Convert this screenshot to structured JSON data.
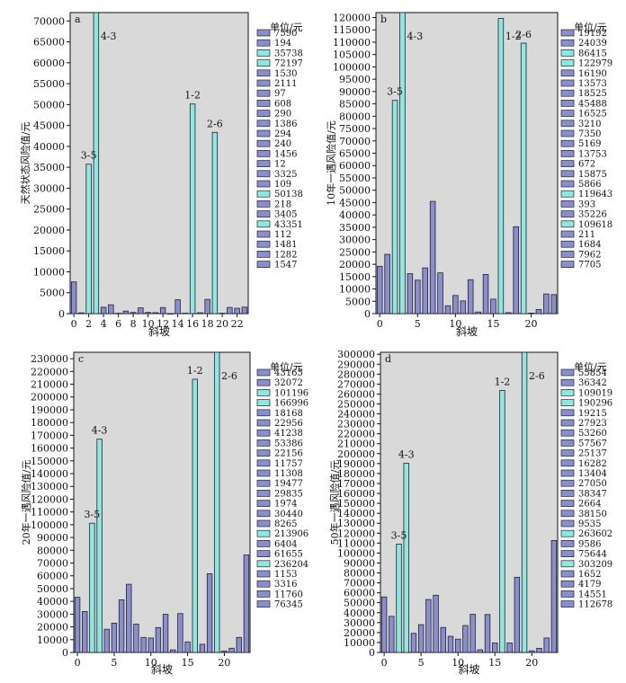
{
  "chart_data": [
    {
      "type": "bar",
      "panel": "a",
      "xlabel": "斜坡",
      "ylabel": "天然状态风险值/元",
      "ylim": [
        0,
        72000
      ],
      "yticks": [
        0,
        5000,
        10000,
        15000,
        20000,
        25000,
        30000,
        35000,
        40000,
        45000,
        50000,
        55000,
        60000,
        65000,
        70000
      ],
      "xticks": [
        0,
        2,
        4,
        6,
        8,
        10,
        12,
        14,
        16,
        18,
        20,
        22
      ],
      "legend_title": "单位/元",
      "values": [
        7590,
        194,
        35738,
        72197,
        1530,
        2111,
        97,
        608,
        290,
        1386,
        294,
        240,
        1456,
        12,
        3325,
        109,
        50138,
        218,
        3405,
        43351,
        112,
        1481,
        1282,
        1547
      ],
      "highlight": [
        2,
        3,
        16,
        19
      ],
      "annotations": [
        {
          "text": "3-5",
          "index": 2,
          "value": 35738
        },
        {
          "text": "4-3",
          "index": 3,
          "value": 72197
        },
        {
          "text": "1-2",
          "index": 16,
          "value": 50138
        },
        {
          "text": "2-6",
          "index": 19,
          "value": 43351
        }
      ],
      "grid": false,
      "legend_position": "right"
    },
    {
      "type": "bar",
      "panel": "b",
      "xlabel": "斜坡",
      "ylabel": "10年一遇风险值/元",
      "ylim": [
        0,
        122000
      ],
      "yticks": [
        0,
        5000,
        10000,
        15000,
        20000,
        25000,
        30000,
        35000,
        40000,
        45000,
        50000,
        55000,
        60000,
        65000,
        70000,
        75000,
        80000,
        85000,
        90000,
        95000,
        100000,
        105000,
        110000,
        115000,
        120000
      ],
      "xticks": [
        0,
        5,
        10,
        15,
        20
      ],
      "legend_title": "单位/元",
      "values": [
        19192,
        24039,
        86415,
        122979,
        16190,
        13573,
        18525,
        45488,
        16525,
        3210,
        7350,
        5169,
        13753,
        672,
        15875,
        5866,
        119643,
        393,
        35226,
        109618,
        211,
        1684,
        7962,
        7705
      ],
      "highlight": [
        2,
        3,
        16,
        19
      ],
      "annotations": [
        {
          "text": "3-5",
          "index": 2,
          "value": 86415
        },
        {
          "text": "4-3",
          "index": 3,
          "value": 122979
        },
        {
          "text": "1-2",
          "index": 16,
          "value": 119643
        },
        {
          "text": "2-6",
          "index": 19,
          "value": 109618
        }
      ],
      "grid": false,
      "legend_position": "right"
    },
    {
      "type": "bar",
      "panel": "c",
      "xlabel": "斜坡",
      "ylabel": "20年一遇风险值/元",
      "ylim": [
        0,
        235000
      ],
      "yticks": [
        0,
        10000,
        20000,
        30000,
        40000,
        50000,
        60000,
        70000,
        80000,
        90000,
        100000,
        110000,
        120000,
        130000,
        140000,
        150000,
        160000,
        170000,
        180000,
        190000,
        200000,
        210000,
        220000,
        230000
      ],
      "xticks": [
        0,
        5,
        10,
        15,
        20
      ],
      "legend_title": "单位/元",
      "values": [
        43165,
        32072,
        101196,
        166996,
        18168,
        22956,
        41238,
        53386,
        22156,
        11757,
        11308,
        19477,
        29835,
        1974,
        30440,
        8265,
        213906,
        6404,
        61655,
        236204,
        1153,
        3316,
        11760,
        76345
      ],
      "highlight": [
        2,
        3,
        16,
        19
      ],
      "annotations": [
        {
          "text": "3-5",
          "index": 2,
          "value": 101196
        },
        {
          "text": "4-3",
          "index": 3,
          "value": 166996
        },
        {
          "text": "1-2",
          "index": 16,
          "value": 213906
        },
        {
          "text": "2-6",
          "index": 19,
          "value": 236204
        }
      ],
      "grid": false,
      "legend_position": "right"
    },
    {
      "type": "bar",
      "panel": "d",
      "xlabel": "斜坡",
      "ylabel": "50年一遇风险值/元",
      "ylim": [
        0,
        302000
      ],
      "yticks": [
        0,
        10000,
        20000,
        30000,
        40000,
        50000,
        60000,
        70000,
        80000,
        90000,
        100000,
        110000,
        120000,
        130000,
        140000,
        150000,
        160000,
        170000,
        180000,
        190000,
        200000,
        210000,
        220000,
        230000,
        240000,
        250000,
        260000,
        270000,
        280000,
        290000,
        300000
      ],
      "xticks": [
        0,
        5,
        10,
        15,
        20
      ],
      "legend_title": "单位/元",
      "values": [
        55854,
        36342,
        109019,
        190296,
        19215,
        27923,
        53260,
        57567,
        25137,
        16282,
        13404,
        27050,
        38347,
        2664,
        38150,
        9535,
        263602,
        9586,
        75644,
        303209,
        1652,
        4179,
        14551,
        112678
      ],
      "highlight": [
        2,
        3,
        16,
        19
      ],
      "annotations": [
        {
          "text": "3-5",
          "index": 2,
          "value": 109019
        },
        {
          "text": "4-3",
          "index": 3,
          "value": 190296
        },
        {
          "text": "1-2",
          "index": 16,
          "value": 263602
        },
        {
          "text": "2-6",
          "index": 19,
          "value": 303209
        }
      ],
      "grid": false,
      "legend_position": "right"
    }
  ],
  "colors": {
    "background": "#d9d9d9",
    "bar_default": "#8a8fc9",
    "bar_highlight": "#8fe8dc",
    "bar_stroke": "#1e1e3c",
    "axis": "#111111"
  }
}
